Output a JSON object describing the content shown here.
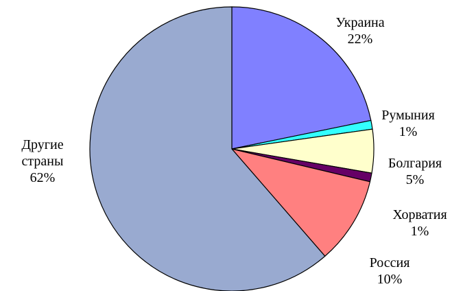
{
  "chart_data": {
    "type": "pie",
    "categories": [
      "Украина",
      "Румыния",
      "Болгария",
      "Хорватия",
      "Россия",
      "Другие страны"
    ],
    "values": [
      22,
      1,
      5,
      1,
      10,
      62
    ],
    "value_labels": [
      "22%",
      "1%",
      "5%",
      "1%",
      "10%",
      "62%"
    ],
    "colors": [
      "#8080ff",
      "#33ffff",
      "#ffffcc",
      "#660066",
      "#ff8080",
      "#99aad0"
    ]
  }
}
